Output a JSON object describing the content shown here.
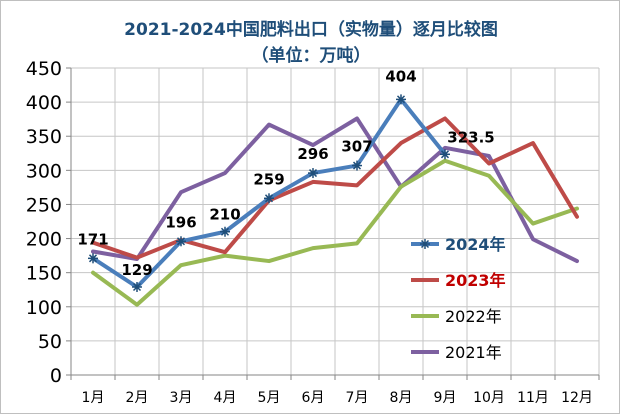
{
  "chart_data": {
    "type": "line",
    "title": "2021-2024中国肥料出口（实物量）逐月比较图",
    "subtitle": "（单位：万吨）",
    "categories": [
      "1月",
      "2月",
      "3月",
      "4月",
      "5月",
      "6月",
      "7月",
      "8月",
      "9月",
      "10月",
      "11月",
      "12月"
    ],
    "ylim": [
      0,
      450
    ],
    "yticks": [
      0,
      50,
      100,
      150,
      200,
      250,
      300,
      350,
      400,
      450
    ],
    "grid": true,
    "legend_position": "right-inside",
    "series": [
      {
        "name": "2024年",
        "color": "#4a7ebb",
        "marker": "asterisk",
        "legend_color": "#1f4e79",
        "legend_bold": true,
        "values": [
          171,
          129,
          196,
          210,
          259,
          296,
          307,
          404,
          323.5,
          null,
          null,
          null
        ],
        "labels": [
          "171",
          "129",
          "196",
          "210",
          "259",
          "296",
          "307",
          "404",
          "323.5",
          "",
          "",
          ""
        ]
      },
      {
        "name": "2023年",
        "color": "#be4b48",
        "marker": "none",
        "legend_color": "#c00000",
        "legend_bold": true,
        "values": [
          194,
          172,
          198,
          180,
          256,
          283,
          278,
          340,
          376,
          310,
          340,
          232
        ]
      },
      {
        "name": "2022年",
        "color": "#98b954",
        "marker": "none",
        "legend_color": "#000000",
        "legend_bold": false,
        "values": [
          150,
          103,
          161,
          175,
          167,
          186,
          193,
          276,
          314,
          292,
          222,
          244
        ]
      },
      {
        "name": "2021年",
        "color": "#7d60a0",
        "marker": "none",
        "legend_color": "#000000",
        "legend_bold": false,
        "values": [
          181,
          170,
          268,
          296,
          367,
          337,
          376,
          276,
          333,
          321,
          199,
          167
        ]
      }
    ]
  }
}
